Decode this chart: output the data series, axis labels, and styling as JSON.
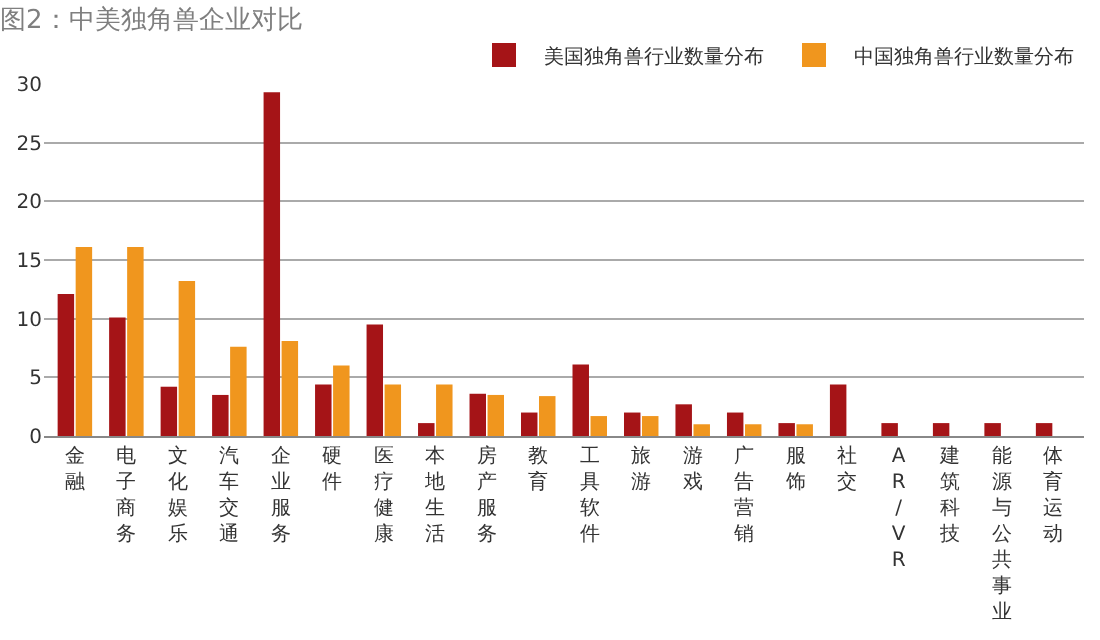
{
  "chart_data": {
    "type": "bar",
    "title": "图2：中美独角兽企业对比",
    "categories": [
      "金融",
      "电子商务",
      "文化娱乐",
      "汽车交通",
      "企业服务",
      "硬件",
      "医疗健康",
      "本地生活",
      "房产服务",
      "教育",
      "工具软件",
      "旅游",
      "游戏",
      "广告营销",
      "服饰",
      "社交",
      "AR/VR",
      "建筑科技",
      "能源与公共事业",
      "体育运动"
    ],
    "series": [
      {
        "name": "美国独角兽行业数量分布",
        "color": "#a51417",
        "values": [
          12.1,
          10.1,
          4.2,
          3.5,
          29.3,
          4.4,
          9.5,
          1.1,
          3.6,
          2.0,
          6.1,
          2.0,
          2.7,
          2.0,
          1.1,
          4.4,
          1.1,
          1.1,
          1.1,
          1.1
        ]
      },
      {
        "name": "中国独角兽行业数量分布",
        "color": "#f0961e",
        "values": [
          16.1,
          16.1,
          13.2,
          7.6,
          8.1,
          6.0,
          4.4,
          4.4,
          3.5,
          3.4,
          1.7,
          1.7,
          1.0,
          1.0,
          1.0,
          0,
          0,
          0,
          0,
          0
        ]
      }
    ],
    "ylim": [
      0,
      30
    ],
    "yticks": [
      0,
      5,
      10,
      15,
      20,
      25,
      30
    ],
    "grid": "y",
    "legend": "top right"
  }
}
